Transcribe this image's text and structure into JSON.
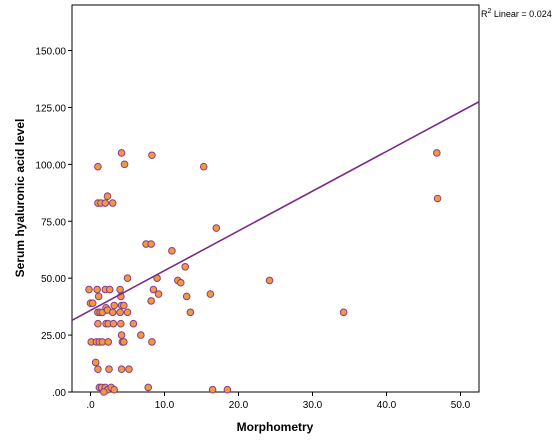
{
  "chart_data": {
    "type": "scatter",
    "xlabel": "Morphometry",
    "ylabel": "Serum hyaluronic acid level",
    "xlim": [
      -2.5,
      52.5
    ],
    "ylim": [
      0,
      170
    ],
    "x_ticks": [
      ".0",
      "10.0",
      "20.0",
      "30.0",
      "40.0",
      "50.0"
    ],
    "x_tick_values": [
      0,
      10,
      20,
      30,
      40,
      50
    ],
    "y_ticks": [
      ".00",
      "25.00",
      "50.00",
      "75.00",
      "100.00",
      "125.00",
      "150.00"
    ],
    "y_tick_values": [
      0,
      25,
      50,
      75,
      100,
      125,
      150
    ],
    "r2_prefix": "R",
    "r2_sup": "2",
    "r2_text": " Linear = 0.024",
    "fit_line": {
      "x": [
        -2.5,
        52.5
      ],
      "y": [
        31.5,
        127.5
      ],
      "color": "#7a2a8a"
    },
    "marker": {
      "fill": "#f29a3a",
      "stroke": "#8a3c8c"
    },
    "points": [
      [
        -0.2,
        45
      ],
      [
        0.0,
        39
      ],
      [
        0.3,
        39
      ],
      [
        0.1,
        22
      ],
      [
        0.9,
        45
      ],
      [
        1.1,
        42
      ],
      [
        1.0,
        99
      ],
      [
        1.0,
        83
      ],
      [
        1.4,
        83
      ],
      [
        2.0,
        83
      ],
      [
        2.3,
        86
      ],
      [
        2.0,
        45
      ],
      [
        1.0,
        35
      ],
      [
        1.3,
        35
      ],
      [
        1.6,
        35
      ],
      [
        1.0,
        30
      ],
      [
        0.8,
        22
      ],
      [
        1.2,
        22
      ],
      [
        1.6,
        22
      ],
      [
        0.7,
        13
      ],
      [
        1.0,
        10
      ],
      [
        1.2,
        2
      ],
      [
        1.5,
        2
      ],
      [
        2.0,
        2
      ],
      [
        2.3,
        1
      ],
      [
        1.8,
        0
      ],
      [
        2.1,
        37
      ],
      [
        2.3,
        36
      ],
      [
        2.1,
        30
      ],
      [
        2.4,
        30
      ],
      [
        2.4,
        22
      ],
      [
        2.5,
        10
      ],
      [
        2.6,
        45
      ],
      [
        2.8,
        2
      ],
      [
        3.0,
        83
      ],
      [
        3.2,
        38
      ],
      [
        3.0,
        35
      ],
      [
        3.1,
        30
      ],
      [
        3.2,
        1
      ],
      [
        4.0,
        45
      ],
      [
        4.1,
        42
      ],
      [
        4.2,
        38
      ],
      [
        4.0,
        35
      ],
      [
        4.1,
        30
      ],
      [
        4.2,
        25
      ],
      [
        4.3,
        22
      ],
      [
        4.5,
        22
      ],
      [
        4.2,
        10
      ],
      [
        4.2,
        105
      ],
      [
        4.6,
        100
      ],
      [
        4.5,
        38
      ],
      [
        5.0,
        50
      ],
      [
        5.0,
        35
      ],
      [
        5.2,
        10
      ],
      [
        5.8,
        30
      ],
      [
        6.8,
        25
      ],
      [
        7.5,
        65
      ],
      [
        8.2,
        65
      ],
      [
        7.8,
        2
      ],
      [
        8.3,
        104
      ],
      [
        8.2,
        40
      ],
      [
        8.5,
        45
      ],
      [
        8.3,
        22
      ],
      [
        9.0,
        50
      ],
      [
        9.2,
        43
      ],
      [
        11.0,
        62
      ],
      [
        11.8,
        49
      ],
      [
        12.2,
        48
      ],
      [
        12.8,
        55
      ],
      [
        13.0,
        42
      ],
      [
        13.5,
        35
      ],
      [
        15.3,
        99
      ],
      [
        16.2,
        43
      ],
      [
        16.5,
        1
      ],
      [
        17.0,
        72
      ],
      [
        18.5,
        1
      ],
      [
        24.2,
        49
      ],
      [
        34.2,
        35
      ],
      [
        46.8,
        105
      ],
      [
        46.9,
        85
      ]
    ]
  }
}
